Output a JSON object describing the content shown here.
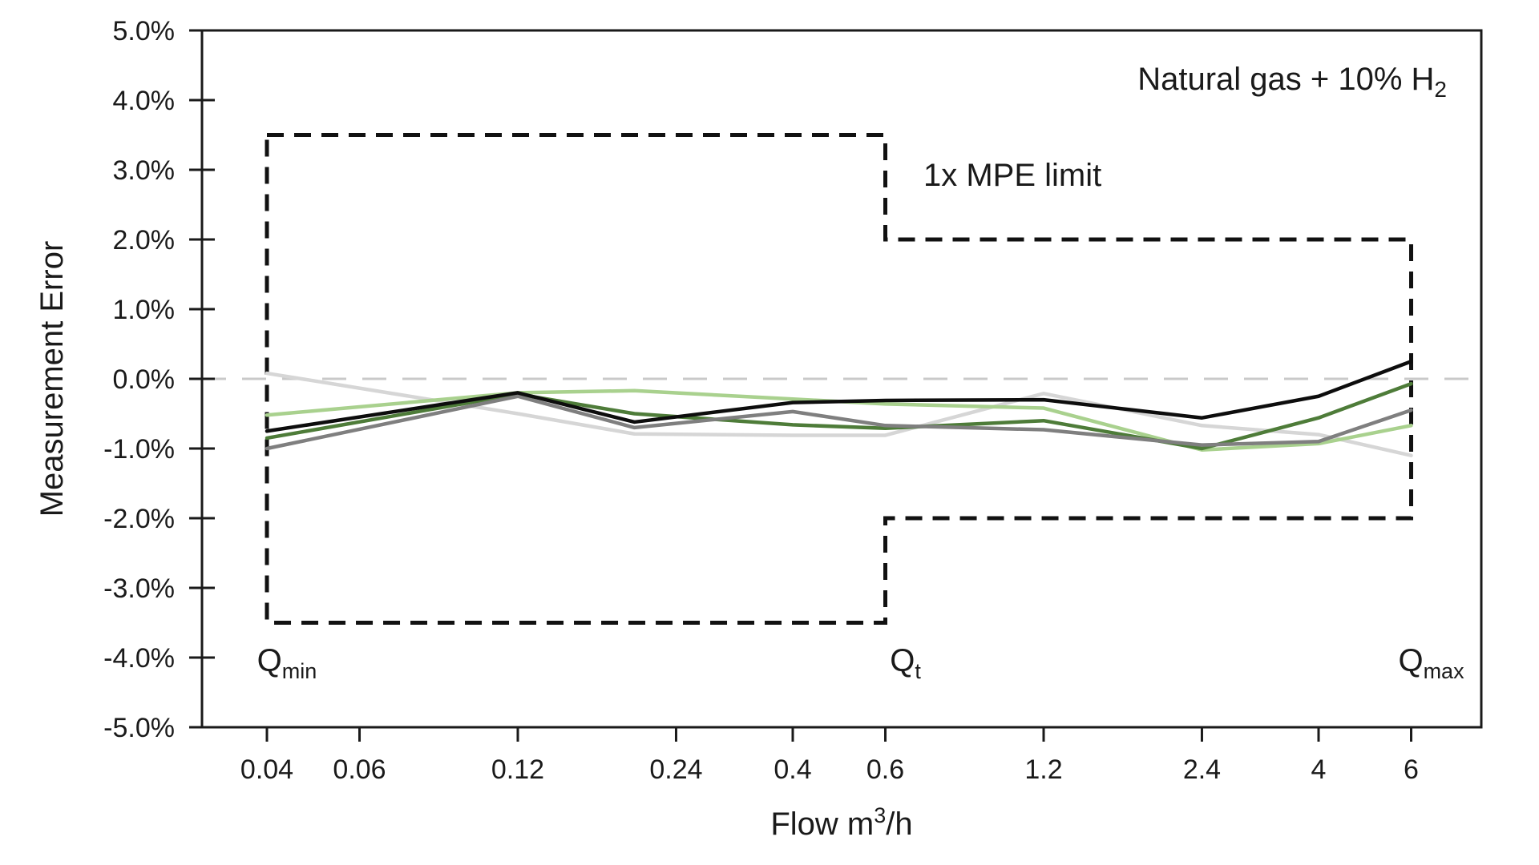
{
  "chart_data": {
    "type": "line",
    "title": {
      "text": "Natural gas + 10% H",
      "subscript": "2"
    },
    "xlabel": {
      "text": "Flow m",
      "superscript": "3",
      "suffix": "/h"
    },
    "ylabel": "Measurement Error",
    "x_scale": "log",
    "ylim": [
      -5,
      5
    ],
    "grid": "zero-line-only",
    "legend": "none",
    "x_ticks": [
      {
        "value": 0.04,
        "label": "0.04"
      },
      {
        "value": 0.06,
        "label": "0.06"
      },
      {
        "value": 0.12,
        "label": "0.12"
      },
      {
        "value": 0.24,
        "label": "0.24"
      },
      {
        "value": 0.4,
        "label": "0.4"
      },
      {
        "value": 0.6,
        "label": "0.6"
      },
      {
        "value": 1.2,
        "label": "1.2"
      },
      {
        "value": 2.4,
        "label": "2.4"
      },
      {
        "value": 4,
        "label": "4"
      },
      {
        "value": 6,
        "label": "6"
      }
    ],
    "y_ticks": [
      {
        "value": 5,
        "label": "5.0%"
      },
      {
        "value": 4,
        "label": "4.0%"
      },
      {
        "value": 3,
        "label": "3.0%"
      },
      {
        "value": 2,
        "label": "2.0%"
      },
      {
        "value": 1,
        "label": "1.0%"
      },
      {
        "value": 0,
        "label": "0.0%"
      },
      {
        "value": -1,
        "label": "-1.0%"
      },
      {
        "value": -2,
        "label": "-2.0%"
      },
      {
        "value": -3,
        "label": "-3.0%"
      },
      {
        "value": -4,
        "label": "-4.0%"
      },
      {
        "value": -5,
        "label": "-5.0%"
      }
    ],
    "zero_line": {
      "value": 0,
      "color": "#c9c9c9",
      "style": "dashed"
    },
    "mpe_envelope": {
      "label": "1x MPE limit",
      "color": "#111111",
      "style": "dashed",
      "description": "±3.5% from Qmin (0.04) to Qt (0.6), ±2.0% from Qt (0.6) to Qmax (6)",
      "points_x": [
        0.04,
        0.6,
        0.6,
        6,
        6,
        0.6,
        0.6,
        0.04,
        0.04
      ],
      "points_y": [
        3.5,
        3.5,
        2.0,
        2.0,
        -2.0,
        -2.0,
        -3.5,
        -3.5,
        3.5
      ]
    },
    "flow_markers": [
      {
        "base": "Q",
        "sub": "min",
        "x": 0.04
      },
      {
        "base": "Q",
        "sub": "t",
        "x": 0.6
      },
      {
        "base": "Q",
        "sub": "max",
        "x": 6
      }
    ],
    "x": [
      0.04,
      0.12,
      0.2,
      0.4,
      0.6,
      1.2,
      2.4,
      4,
      6
    ],
    "series": [
      {
        "name": "meter-light-gray",
        "color": "#d6d6d6",
        "values": [
          0.08,
          -0.5,
          -0.79,
          -0.81,
          -0.81,
          -0.21,
          -0.67,
          -0.8,
          -1.1
        ]
      },
      {
        "name": "meter-light-green",
        "color": "#a9d18e",
        "values": [
          -0.52,
          -0.2,
          -0.17,
          -0.29,
          -0.36,
          -0.42,
          -1.02,
          -0.93,
          -0.67
        ]
      },
      {
        "name": "meter-dark-green",
        "color": "#4e7c39",
        "values": [
          -0.85,
          -0.22,
          -0.5,
          -0.66,
          -0.71,
          -0.6,
          -1.0,
          -0.56,
          -0.07
        ]
      },
      {
        "name": "meter-dark-gray",
        "color": "#7f7f7f",
        "values": [
          -1.0,
          -0.25,
          -0.7,
          -0.47,
          -0.67,
          -0.73,
          -0.95,
          -0.9,
          -0.45
        ]
      },
      {
        "name": "meter-black",
        "color": "#0d0d0d",
        "values": [
          -0.75,
          -0.2,
          -0.62,
          -0.34,
          -0.31,
          -0.3,
          -0.56,
          -0.25,
          0.25
        ]
      }
    ]
  }
}
